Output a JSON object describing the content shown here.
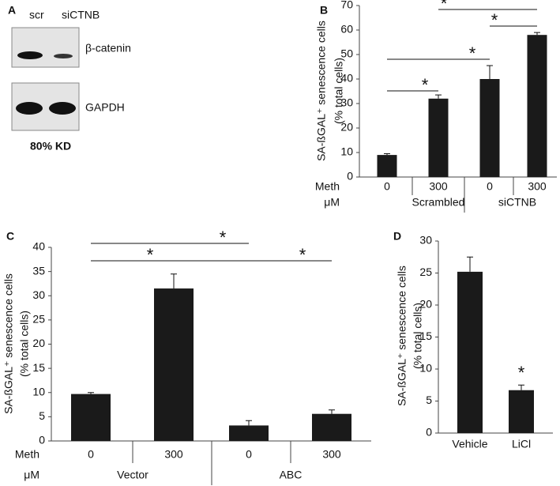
{
  "blot": {
    "panel": "A",
    "lanes": [
      "scr",
      "siCTNB"
    ],
    "bands": [
      "β-catenin",
      "GAPDH"
    ],
    "note": "80% KD"
  },
  "chart_data": [
    {
      "type": "bar",
      "panel": "B",
      "ylabel": [
        "SA-ßGAL⁺ senescence cells",
        "(% total cells)"
      ],
      "row_labels": [
        "Meth",
        "μM"
      ],
      "categories": [
        "0",
        "300",
        "0",
        "300"
      ],
      "groups": [
        "Scrambled",
        "siCTNB"
      ],
      "values": [
        9,
        32,
        40,
        58
      ],
      "errors": [
        0.5,
        1.5,
        5.5,
        1
      ],
      "color": "#1a1a1a",
      "ylim": [
        0,
        70
      ],
      "yticks": [
        0,
        10,
        20,
        30,
        40,
        50,
        60,
        70
      ],
      "annotations": [
        "*",
        "*",
        "*",
        "*"
      ]
    },
    {
      "type": "bar",
      "panel": "C",
      "ylabel": [
        "SA-ßGAL⁺ senescence cells",
        "(% total cells)"
      ],
      "row_labels": [
        "Meth",
        "μM"
      ],
      "categories": [
        "0",
        "300",
        "0",
        "300"
      ],
      "groups": [
        "Vector",
        "ABC"
      ],
      "values": [
        9.7,
        31.5,
        3.2,
        5.6
      ],
      "errors": [
        0.3,
        3,
        1,
        0.8
      ],
      "color": "#1a1a1a",
      "ylim": [
        0,
        40
      ],
      "yticks": [
        0,
        5,
        10,
        15,
        20,
        25,
        30,
        35,
        40
      ],
      "annotations": [
        "*",
        "*",
        "*"
      ]
    },
    {
      "type": "bar",
      "panel": "D",
      "ylabel": [
        "SA-ßGAL⁺ senescence cells",
        "(% total cells)"
      ],
      "categories": [
        "Vehicle",
        "LiCl"
      ],
      "values": [
        25.2,
        6.7
      ],
      "errors": [
        2.3,
        0.8
      ],
      "color": "#1a1a1a",
      "ylim": [
        0,
        30
      ],
      "yticks": [
        0,
        5,
        10,
        15,
        20,
        25,
        30
      ],
      "annotations": [
        "*"
      ]
    }
  ]
}
